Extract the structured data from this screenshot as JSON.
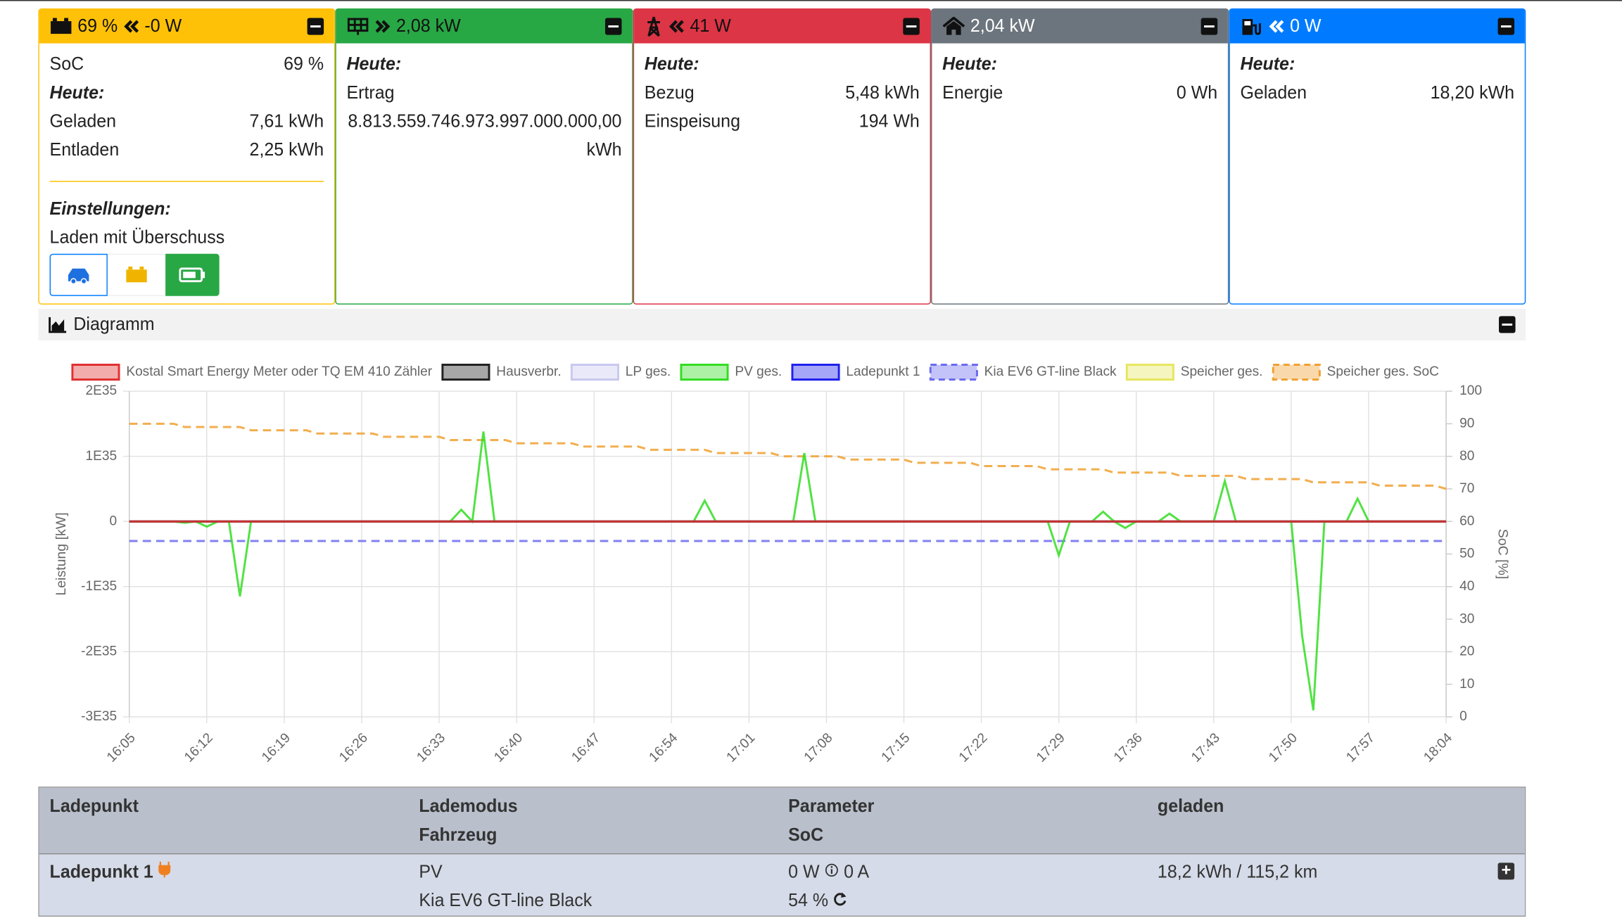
{
  "battery": {
    "header_soc": "69 %",
    "header_power": "-0 W",
    "soc_label": "SoC",
    "soc_value": "69 %",
    "today": "Heute:",
    "charged_label": "Geladen",
    "charged": "7,61 kWh",
    "discharged_label": "Entladen",
    "discharged": "2,25 kWh",
    "settings": "Einstellungen:",
    "mode": "Laden mit Überschuss"
  },
  "pv": {
    "header_power": "2,08 kW",
    "today": "Heute:",
    "yield_label": "Ertrag",
    "yield": "8.813.559.746.973.997.000.000,00",
    "yield_unit": "kWh"
  },
  "grid": {
    "header_power": "41 W",
    "today": "Heute:",
    "import_label": "Bezug",
    "import": "5,48 kWh",
    "export_label": "Einspeisung",
    "export": "194 Wh"
  },
  "house": {
    "header_power": "2,04 kW",
    "today": "Heute:",
    "energy_label": "Energie",
    "energy": "0 Wh"
  },
  "chargepoints": {
    "header_power": "0 W",
    "today": "Heute:",
    "charged_label": "Geladen",
    "charged": "18,20 kWh"
  },
  "diagram_title": "Diagramm",
  "chart_data": {
    "type": "line",
    "ylabel": "Leistung [kW]",
    "y2label": "SoC [%]",
    "categories": [
      "16:05",
      null,
      null,
      null,
      null,
      null,
      null,
      "16:12",
      null,
      null,
      null,
      null,
      null,
      null,
      "16:19",
      null,
      null,
      null,
      null,
      null,
      null,
      "16:26",
      null,
      null,
      null,
      null,
      null,
      null,
      "16:33",
      null,
      null,
      null,
      null,
      null,
      null,
      "16:40",
      null,
      null,
      null,
      null,
      null,
      null,
      "16:47",
      null,
      null,
      null,
      null,
      null,
      null,
      "16:54",
      null,
      null,
      null,
      null,
      null,
      null,
      "17:01",
      null,
      null,
      null,
      null,
      null,
      null,
      "17:08",
      null,
      null,
      null,
      null,
      null,
      null,
      "17:15",
      null,
      null,
      null,
      null,
      null,
      null,
      "17:22",
      null,
      null,
      null,
      null,
      null,
      null,
      "17:29",
      null,
      null,
      null,
      null,
      null,
      null,
      "17:36",
      null,
      null,
      null,
      null,
      null,
      null,
      "17:43",
      null,
      null,
      null,
      null,
      null,
      null,
      "17:50",
      null,
      null,
      null,
      null,
      null,
      null,
      "17:57",
      null,
      null,
      null,
      null,
      null,
      null,
      "18:04"
    ],
    "ylim": [
      -3e+35,
      2e+35
    ],
    "yticks": [
      {
        "value": -3e+35,
        "label": "-3E35"
      },
      {
        "value": -2e+35,
        "label": "-2E35"
      },
      {
        "value": -1e+35,
        "label": "-1E35"
      },
      0,
      {
        "value": 1e+35,
        "label": "1E35"
      },
      {
        "value": 2e+35,
        "label": "2E35"
      }
    ],
    "y2lim": [
      0,
      100
    ],
    "y2ticks": [
      0,
      10,
      20,
      30,
      40,
      50,
      60,
      70,
      80,
      90,
      100
    ],
    "grid": true,
    "series": [
      {
        "name": "Kostal Smart Energy Meter oder TQ EM 410 Zähler",
        "color": "#e03030",
        "values": [
          0,
          0,
          0,
          0,
          0,
          0,
          0,
          0,
          0,
          0,
          0,
          0,
          0,
          0,
          0,
          0,
          0,
          0,
          0,
          0,
          0,
          0,
          0,
          0,
          0,
          0,
          0,
          0,
          0,
          0,
          0,
          0,
          0,
          0,
          0,
          0,
          0,
          0,
          0,
          0,
          0,
          0,
          0,
          0,
          0,
          0,
          0,
          0,
          0,
          0,
          0,
          0,
          0,
          0,
          0,
          0,
          0,
          0,
          0,
          0,
          0,
          0,
          0,
          0,
          0,
          0,
          0,
          0,
          0,
          0,
          0,
          0,
          0,
          0,
          0,
          0,
          0,
          0,
          0,
          0,
          0,
          0,
          0,
          0,
          0,
          0,
          0,
          0,
          0,
          0,
          0,
          0,
          0,
          0,
          0,
          0,
          0,
          0,
          0,
          0,
          0,
          0,
          0,
          0,
          0,
          0,
          0,
          0,
          0,
          0,
          0,
          0,
          0,
          0,
          0,
          0,
          0,
          0,
          0,
          0
        ]
      },
      {
        "name": "Hausverbr.",
        "color": "#222222",
        "values": [
          0,
          0,
          0,
          0,
          0,
          0,
          0,
          0,
          0,
          0,
          0,
          0,
          0,
          0,
          0,
          0,
          0,
          0,
          0,
          0,
          0,
          0,
          0,
          0,
          0,
          0,
          0,
          0,
          0,
          0,
          0,
          0,
          0,
          0,
          0,
          0,
          0,
          0,
          0,
          0,
          0,
          0,
          0,
          0,
          0,
          0,
          0,
          0,
          0,
          0,
          0,
          0,
          0,
          0,
          0,
          0,
          0,
          0,
          0,
          0,
          0,
          0,
          0,
          0,
          0,
          0,
          0,
          0,
          0,
          0,
          0,
          0,
          0,
          0,
          0,
          0,
          0,
          0,
          0,
          0,
          0,
          0,
          0,
          0,
          0,
          0,
          0,
          0,
          0,
          0,
          0,
          0,
          0,
          0,
          0,
          0,
          0,
          0,
          0,
          0,
          0,
          0,
          0,
          0,
          0,
          0,
          0,
          0,
          0,
          0,
          0,
          0,
          0,
          0,
          0,
          0,
          0,
          0,
          0,
          0
        ]
      },
      {
        "name": "LP ges.",
        "color": "#c8c8f0",
        "values": [
          0,
          0,
          0,
          0,
          0,
          0,
          0,
          0,
          0,
          0,
          0,
          0,
          0,
          0,
          0,
          0,
          0,
          0,
          0,
          0,
          0,
          0,
          0,
          0,
          0,
          0,
          0,
          0,
          0,
          0,
          0,
          0,
          0,
          0,
          0,
          0,
          0,
          0,
          0,
          0,
          0,
          0,
          0,
          0,
          0,
          0,
          0,
          0,
          0,
          0,
          0,
          0,
          0,
          0,
          0,
          0,
          0,
          0,
          0,
          0,
          0,
          0,
          0,
          0,
          0,
          0,
          0,
          0,
          0,
          0,
          0,
          0,
          0,
          0,
          0,
          0,
          0,
          0,
          0,
          0,
          0,
          0,
          0,
          0,
          0,
          0,
          0,
          0,
          0,
          0,
          0,
          0,
          0,
          0,
          0,
          0,
          0,
          0,
          0,
          0,
          0,
          0,
          0,
          0,
          0,
          0,
          0,
          0,
          0,
          0,
          0,
          0,
          0,
          0,
          0,
          0,
          0,
          0,
          0,
          0
        ]
      },
      {
        "name": "PV ges.",
        "color": "#33dd22",
        "values": [
          0,
          0,
          0,
          0,
          0,
          -2e+33,
          0,
          -8e+33,
          0,
          0,
          -1.15e+35,
          0,
          0,
          0,
          0,
          0,
          0,
          0,
          0,
          0,
          0,
          0,
          0,
          0,
          0,
          0,
          0,
          0,
          0,
          0,
          1.8e+34,
          0,
          1.38e+35,
          0,
          0,
          0,
          0,
          0,
          0,
          0,
          0,
          0,
          0,
          0,
          0,
          0,
          0,
          0,
          0,
          0,
          0,
          0,
          3.2e+34,
          0,
          0,
          0,
          0,
          0,
          0,
          0,
          0,
          1.05e+35,
          0,
          0,
          0,
          0,
          0,
          0,
          0,
          0,
          0,
          0,
          0,
          0,
          0,
          0,
          0,
          0,
          0,
          0,
          0,
          0,
          0,
          0,
          -5.2e+34,
          0,
          0,
          0,
          1.5e+34,
          0,
          -1e+34,
          0,
          0,
          0,
          1.2e+34,
          0,
          0,
          0,
          0,
          6.2e+34,
          0,
          0,
          0,
          0,
          0,
          0,
          -1.77e+35,
          -2.9e+35,
          0,
          0,
          0,
          3.5e+34,
          0,
          0,
          0,
          0,
          0,
          0,
          0,
          0
        ]
      },
      {
        "name": "Ladepunkt 1",
        "color": "#2020ee",
        "values": [
          0,
          0,
          0,
          0,
          0,
          0,
          0,
          0,
          0,
          0,
          0,
          0,
          0,
          0,
          0,
          0,
          0,
          0,
          0,
          0,
          0,
          0,
          0,
          0,
          0,
          0,
          0,
          0,
          0,
          0,
          0,
          0,
          0,
          0,
          0,
          0,
          0,
          0,
          0,
          0,
          0,
          0,
          0,
          0,
          0,
          0,
          0,
          0,
          0,
          0,
          0,
          0,
          0,
          0,
          0,
          0,
          0,
          0,
          0,
          0,
          0,
          0,
          0,
          0,
          0,
          0,
          0,
          0,
          0,
          0,
          0,
          0,
          0,
          0,
          0,
          0,
          0,
          0,
          0,
          0,
          0,
          0,
          0,
          0,
          0,
          0,
          0,
          0,
          0,
          0,
          0,
          0,
          0,
          0,
          0,
          0,
          0,
          0,
          0,
          0,
          0,
          0,
          0,
          0,
          0,
          0,
          0,
          0,
          0,
          0,
          0,
          0,
          0,
          0,
          0,
          0,
          0,
          0,
          0,
          0
        ]
      },
      {
        "name": "Kia EV6 GT-line Black",
        "color": "#6a6af0",
        "dashed": true,
        "axis": "y2",
        "values": [
          54,
          54,
          54,
          54,
          54,
          54,
          54,
          54,
          54,
          54,
          54,
          54,
          54,
          54,
          54,
          54,
          54,
          54,
          54,
          54,
          54,
          54,
          54,
          54,
          54,
          54,
          54,
          54,
          54,
          54,
          54,
          54,
          54,
          54,
          54,
          54,
          54,
          54,
          54,
          54,
          54,
          54,
          54,
          54,
          54,
          54,
          54,
          54,
          54,
          54,
          54,
          54,
          54,
          54,
          54,
          54,
          54,
          54,
          54,
          54,
          54,
          54,
          54,
          54,
          54,
          54,
          54,
          54,
          54,
          54,
          54,
          54,
          54,
          54,
          54,
          54,
          54,
          54,
          54,
          54,
          54,
          54,
          54,
          54,
          54,
          54,
          54,
          54,
          54,
          54,
          54,
          54,
          54,
          54,
          54,
          54,
          54,
          54,
          54,
          54,
          54,
          54,
          54,
          54,
          54,
          54,
          54,
          54,
          54,
          54,
          54,
          54,
          54,
          54,
          54,
          54,
          54,
          54,
          54,
          54
        ]
      },
      {
        "name": "Speicher ges.",
        "color": "#e6e660",
        "values": [
          0,
          0,
          0,
          0,
          0,
          0,
          0,
          0,
          0,
          0,
          0,
          0,
          0,
          0,
          0,
          0,
          0,
          0,
          0,
          0,
          0,
          0,
          0,
          0,
          0,
          0,
          0,
          0,
          0,
          0,
          0,
          0,
          0,
          0,
          0,
          0,
          0,
          0,
          0,
          0,
          0,
          0,
          0,
          0,
          0,
          0,
          0,
          0,
          0,
          0,
          0,
          0,
          0,
          0,
          0,
          0,
          0,
          0,
          0,
          0,
          0,
          0,
          0,
          0,
          0,
          0,
          0,
          0,
          0,
          0,
          0,
          0,
          0,
          0,
          0,
          0,
          0,
          0,
          0,
          0,
          0,
          0,
          0,
          0,
          0,
          0,
          0,
          0,
          0,
          0,
          0,
          0,
          0,
          0,
          0,
          0,
          0,
          0,
          0,
          0,
          0,
          0,
          0,
          0,
          0,
          0,
          0,
          0,
          0,
          0,
          0,
          0,
          0,
          0,
          0,
          0,
          0,
          0,
          0,
          0
        ]
      },
      {
        "name": "Speicher ges. SoC",
        "color": "#f0a030",
        "dashed": true,
        "axis": "y2",
        "values": [
          90,
          90,
          90,
          90,
          90,
          89,
          89,
          89,
          89,
          89,
          89,
          88,
          88,
          88,
          88,
          88,
          88,
          87,
          87,
          87,
          87,
          87,
          87,
          86,
          86,
          86,
          86,
          86,
          86,
          85,
          85,
          85,
          85,
          85,
          85,
          84,
          84,
          84,
          84,
          84,
          84,
          83,
          83,
          83,
          83,
          83,
          83,
          82,
          82,
          82,
          82,
          82,
          82,
          81,
          81,
          81,
          81,
          81,
          81,
          80,
          80,
          80,
          80,
          80,
          80,
          79,
          79,
          79,
          79,
          79,
          79,
          78,
          78,
          78,
          78,
          78,
          78,
          77,
          77,
          77,
          77,
          77,
          77,
          76,
          76,
          76,
          76,
          76,
          76,
          75,
          75,
          75,
          75,
          75,
          75,
          74,
          74,
          74,
          74,
          74,
          74,
          73,
          73,
          73,
          73,
          73,
          73,
          72,
          72,
          72,
          72,
          72,
          72,
          71,
          71,
          71,
          71,
          71,
          71,
          70
        ]
      }
    ]
  },
  "table": {
    "header": [
      "Ladepunkt",
      "Lademodus",
      "Fahrzeug",
      "Parameter",
      "SoC",
      "geladen"
    ],
    "row": {
      "name": "Ladepunkt 1",
      "mode": "PV",
      "vehicle": "Kia EV6 GT-line Black",
      "power": "0 W",
      "current": "0 A",
      "soc": "54 %",
      "charged": "18,2 kWh / 115,2 km"
    }
  }
}
